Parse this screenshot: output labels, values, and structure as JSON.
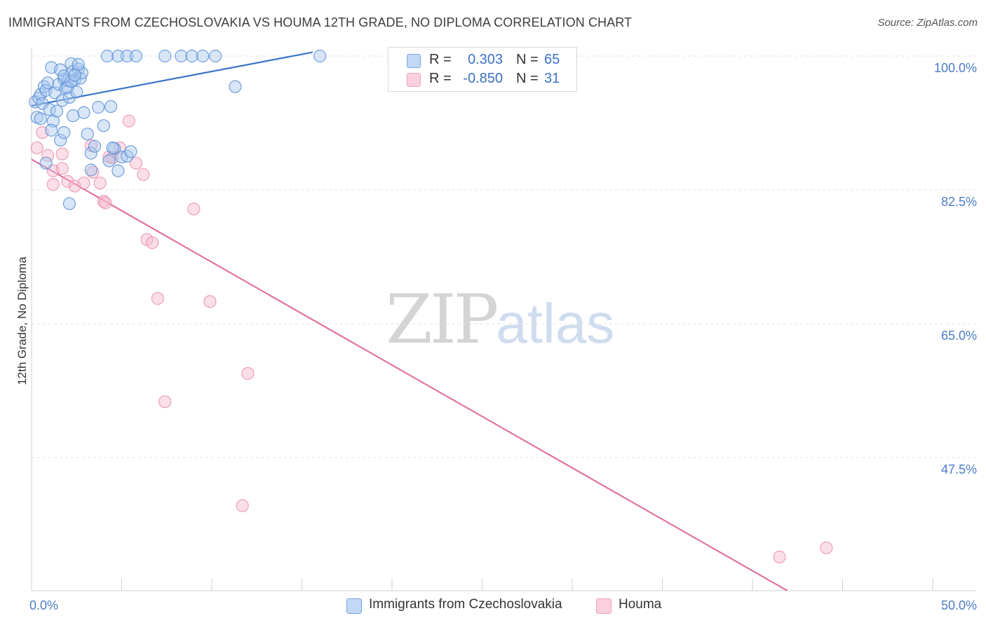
{
  "title": "IMMIGRANTS FROM CZECHOSLOVAKIA VS HOUMA 12TH GRADE, NO DIPLOMA CORRELATION CHART",
  "source": "Source: ZipAtlas.com",
  "watermark": {
    "zip": "ZIP",
    "atlas": "atlas"
  },
  "legend": {
    "rows": [
      {
        "r_label": "R =",
        "r_value": "0.303",
        "n_label": "N =",
        "n_value": "65"
      },
      {
        "r_label": "R =",
        "r_value": "-0.850",
        "n_label": "N =",
        "n_value": "31"
      }
    ]
  },
  "bottom_legend": {
    "series1": "Immigrants from Czechoslovakia",
    "series2": "Houma"
  },
  "colors": {
    "blue_fill": "#a8c8f0",
    "blue_stroke": "#5b8fd6",
    "blue_line": "#3a74c8",
    "pink_fill": "#f7b8cc",
    "pink_stroke": "#e88aa8",
    "pink_line": "#e0689a",
    "axis_text": "#4a7cc7",
    "grid": "#e2e2e2"
  },
  "chart_data": {
    "type": "scatter",
    "title": "IMMIGRANTS FROM CZECHOSLOVAKIA VS HOUMA 12TH GRADE, NO DIPLOMA CORRELATION CHART",
    "xlabel": "",
    "ylabel": "12th Grade, No Diploma",
    "xlim": [
      0,
      50
    ],
    "ylim": [
      32.5,
      102
    ],
    "x_tick_labels": [
      "0.0%",
      "50.0%"
    ],
    "y_ticks": [
      {
        "value": 100.0,
        "label": "100.0%"
      },
      {
        "value": 82.5,
        "label": "82.5%"
      },
      {
        "value": 65.0,
        "label": "65.0%"
      },
      {
        "value": 47.5,
        "label": "47.5%"
      }
    ],
    "series": [
      {
        "name": "Immigrants from Czechoslovakia",
        "R": 0.303,
        "N": 65,
        "trend": {
          "x": [
            0.0,
            15.6
          ],
          "y": [
            93.5,
            100.5
          ]
        },
        "points": [
          [
            0.2,
            94.0
          ],
          [
            0.3,
            92.0
          ],
          [
            0.4,
            94.5
          ],
          [
            0.5,
            95.0
          ],
          [
            0.6,
            93.8
          ],
          [
            0.7,
            96.0
          ],
          [
            0.8,
            95.5
          ],
          [
            0.9,
            96.5
          ],
          [
            1.0,
            93.0
          ],
          [
            1.1,
            98.5
          ],
          [
            1.2,
            91.5
          ],
          [
            1.3,
            95.2
          ],
          [
            1.4,
            92.8
          ],
          [
            1.5,
            96.3
          ],
          [
            1.6,
            89.0
          ],
          [
            1.7,
            94.2
          ],
          [
            1.8,
            97.0
          ],
          [
            1.9,
            95.8
          ],
          [
            2.0,
            96.8
          ],
          [
            2.1,
            94.6
          ],
          [
            2.2,
            99.0
          ],
          [
            2.3,
            98.0
          ],
          [
            2.4,
            96.9
          ],
          [
            2.5,
            95.3
          ],
          [
            2.6,
            98.3
          ],
          [
            2.7,
            97.1
          ],
          [
            2.8,
            97.8
          ],
          [
            1.6,
            98.2
          ],
          [
            1.8,
            97.4
          ],
          [
            2.0,
            95.9
          ],
          [
            2.2,
            96.7
          ],
          [
            2.4,
            97.5
          ],
          [
            2.6,
            98.9
          ],
          [
            2.9,
            92.6
          ],
          [
            3.1,
            89.8
          ],
          [
            3.3,
            87.3
          ],
          [
            3.5,
            88.2
          ],
          [
            3.7,
            93.3
          ],
          [
            4.0,
            90.9
          ],
          [
            4.3,
            86.3
          ],
          [
            4.6,
            87.9
          ],
          [
            4.8,
            85.0
          ],
          [
            4.5,
            88.0
          ],
          [
            5.0,
            86.8
          ],
          [
            5.3,
            86.9
          ],
          [
            4.4,
            93.4
          ],
          [
            5.5,
            87.5
          ],
          [
            3.3,
            85.1
          ],
          [
            2.1,
            80.7
          ],
          [
            1.8,
            90.0
          ],
          [
            2.3,
            92.2
          ],
          [
            0.8,
            86.0
          ],
          [
            1.1,
            90.3
          ],
          [
            0.5,
            91.8
          ],
          [
            4.2,
            100.0
          ],
          [
            4.8,
            100.0
          ],
          [
            5.3,
            100.0
          ],
          [
            5.8,
            100.0
          ],
          [
            7.4,
            100.0
          ],
          [
            8.3,
            100.0
          ],
          [
            8.9,
            100.0
          ],
          [
            9.5,
            100.0
          ],
          [
            10.2,
            100.0
          ],
          [
            11.3,
            96.0
          ],
          [
            16.0,
            100.0
          ]
        ]
      },
      {
        "name": "Houma",
        "R": -0.85,
        "N": 31,
        "trend": {
          "x": [
            0.0,
            42.0
          ],
          "y": [
            86.5,
            30.0
          ]
        },
        "points": [
          [
            0.3,
            88.0
          ],
          [
            0.6,
            90.0
          ],
          [
            0.9,
            87.0
          ],
          [
            1.2,
            85.0
          ],
          [
            1.7,
            85.3
          ],
          [
            1.2,
            83.2
          ],
          [
            2.0,
            83.6
          ],
          [
            2.4,
            83.0
          ],
          [
            2.9,
            83.4
          ],
          [
            3.3,
            88.3
          ],
          [
            4.0,
            81.0
          ],
          [
            4.1,
            80.8
          ],
          [
            4.3,
            86.8
          ],
          [
            4.5,
            86.7
          ],
          [
            3.8,
            83.4
          ],
          [
            4.9,
            88.0
          ],
          [
            3.4,
            84.8
          ],
          [
            5.8,
            86.0
          ],
          [
            6.2,
            84.5
          ],
          [
            5.4,
            91.5
          ],
          [
            6.4,
            76.0
          ],
          [
            6.7,
            75.6
          ],
          [
            9.0,
            80.0
          ],
          [
            7.0,
            68.3
          ],
          [
            9.9,
            67.9
          ],
          [
            12.0,
            58.5
          ],
          [
            7.4,
            54.8
          ],
          [
            11.7,
            41.2
          ],
          [
            41.5,
            34.5
          ],
          [
            44.1,
            35.7
          ],
          [
            1.7,
            87.2
          ]
        ]
      }
    ]
  }
}
